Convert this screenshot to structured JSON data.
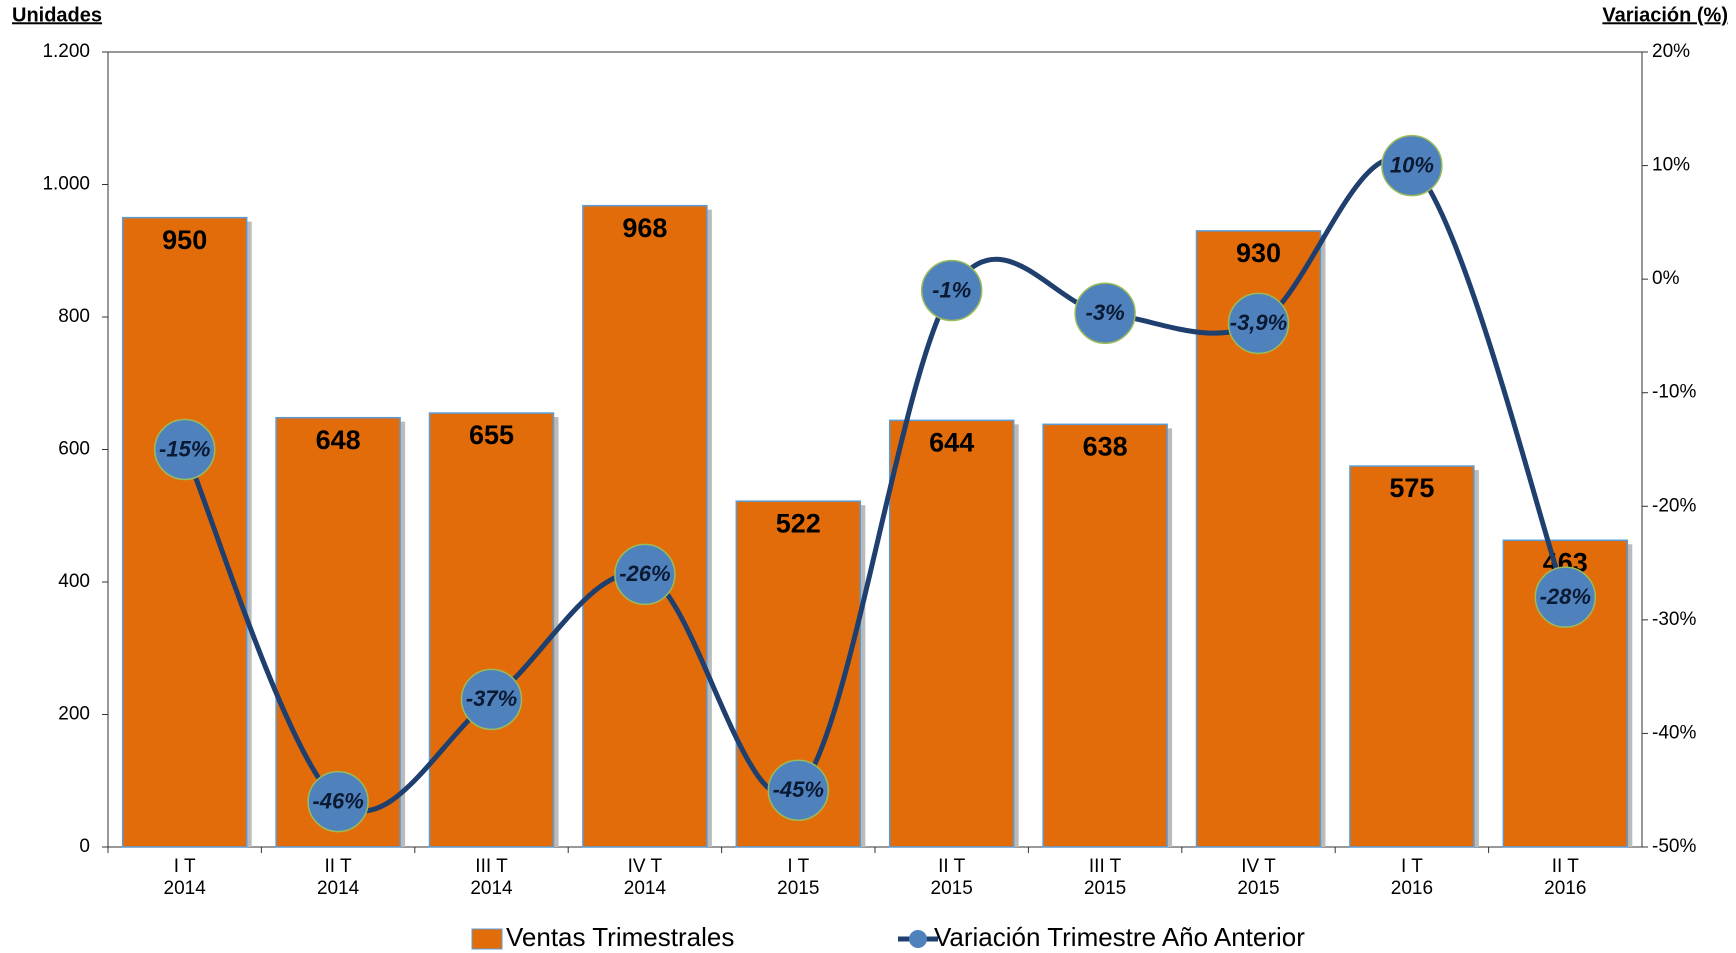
{
  "chart_data": {
    "type": "bar_line",
    "ylabel": "Unidades",
    "y2label": "Variación (%)",
    "categories": [
      [
        "I T",
        "2014"
      ],
      [
        "II T",
        "2014"
      ],
      [
        "III T",
        "2014"
      ],
      [
        "IV T",
        "2014"
      ],
      [
        "I T",
        "2015"
      ],
      [
        "II T",
        "2015"
      ],
      [
        "III T",
        "2015"
      ],
      [
        "IV T",
        "2015"
      ],
      [
        "I T",
        "2016"
      ],
      [
        "II T",
        "2016"
      ]
    ],
    "series": [
      {
        "name": "Ventas Trimestrales",
        "type": "bar",
        "color": "#e36c0a",
        "values": [
          950,
          648,
          655,
          968,
          522,
          644,
          638,
          930,
          575,
          463
        ]
      },
      {
        "name": "Variación Trimestre Año Anterior",
        "type": "line",
        "axis": "y2",
        "color": "#1f3f6e",
        "marker_color": "#4f81bd",
        "values": [
          -15,
          -46,
          -37,
          -26,
          -45,
          -1,
          -3,
          -3.9,
          10,
          -28
        ],
        "value_labels": [
          "-15%",
          "-46%",
          "-37%",
          "-26%",
          "-45%",
          "-1%",
          "-3%",
          "-3,9%",
          "10%",
          "-28%"
        ]
      }
    ],
    "ylim": [
      0,
      1200
    ],
    "yticks": [
      0,
      200,
      400,
      600,
      800,
      {
        "value": 1000,
        "label": "1.000"
      },
      {
        "value": 1200,
        "label": "1.200"
      }
    ],
    "y2lim": [
      -50,
      20
    ],
    "y2ticks": [
      {
        "value": -50,
        "label": "-50%"
      },
      {
        "value": -40,
        "label": "-40%"
      },
      {
        "value": -30,
        "label": "-30%"
      },
      {
        "value": -20,
        "label": "-20%"
      },
      {
        "value": -10,
        "label": "-10%"
      },
      {
        "value": 0,
        "label": "0%"
      },
      {
        "value": 10,
        "label": "10%"
      },
      {
        "value": 20,
        "label": "20%"
      }
    ],
    "legend": "bottom"
  }
}
